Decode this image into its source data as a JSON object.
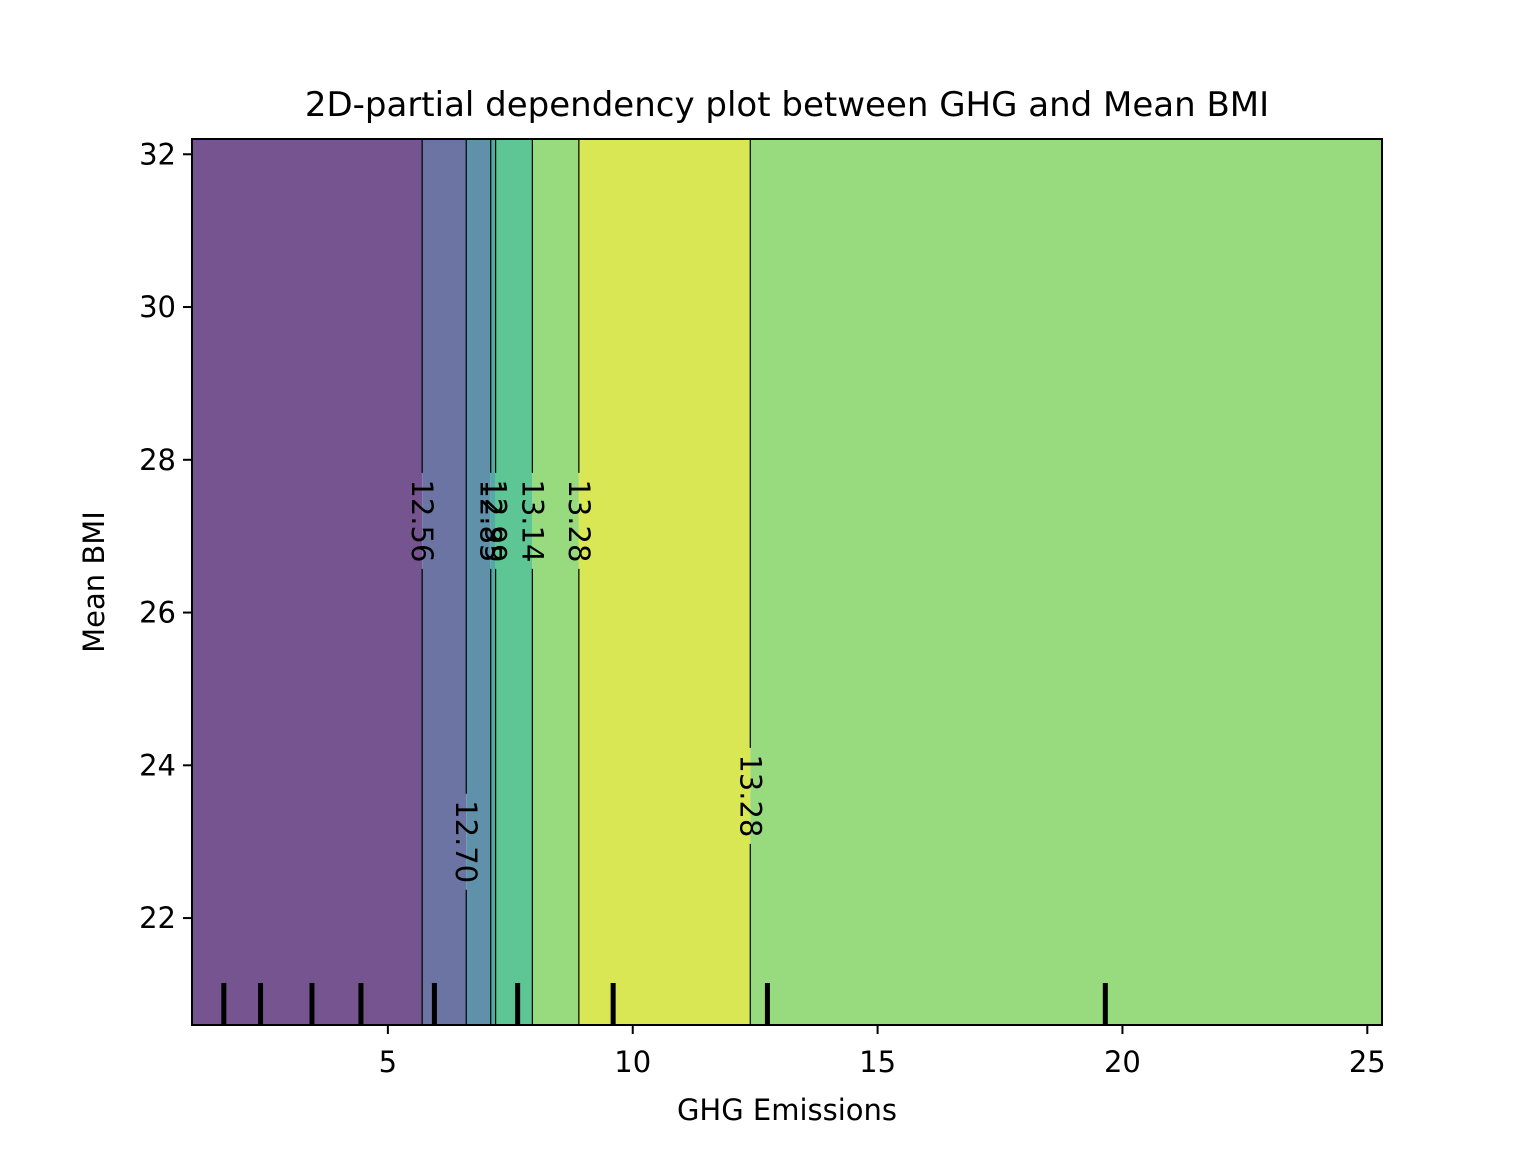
{
  "chart_data": {
    "type": "heatmap",
    "subtype": "filled-contour partial dependence",
    "title": "2D-partial dependency plot between GHG and Mean BMI",
    "xlabel": "GHG Emissions",
    "ylabel": "Mean BMI",
    "xlim": [
      1.0,
      25.3
    ],
    "ylim": [
      20.6,
      32.2
    ],
    "x_ticks": [
      5,
      10,
      15,
      20,
      25
    ],
    "y_ticks": [
      22,
      24,
      26,
      28,
      30,
      32
    ],
    "grid": false,
    "legend": "none",
    "bands": [
      {
        "x_start": 1.0,
        "x_end": 5.7,
        "color": "#765490",
        "level": "< 12.56"
      },
      {
        "x_start": 5.7,
        "x_end": 6.6,
        "color": "#6b74a2",
        "level": "12.56 – 12.70"
      },
      {
        "x_start": 6.6,
        "x_end": 7.1,
        "color": "#5f92aa",
        "level": "12.70 – 12.85"
      },
      {
        "x_start": 7.1,
        "x_end": 7.2,
        "color": "#52aba0",
        "level": "12.85 – 12.99"
      },
      {
        "x_start": 7.2,
        "x_end": 7.95,
        "color": "#5ec594",
        "level": "12.99 – 13.14"
      },
      {
        "x_start": 7.95,
        "x_end": 8.9,
        "color": "#98db7e",
        "level": "13.14 – 13.28"
      },
      {
        "x_start": 8.9,
        "x_end": 12.4,
        "color": "#dae754",
        "level": "> 13.28"
      },
      {
        "x_start": 12.4,
        "x_end": 25.3,
        "color": "#98db7e",
        "level": "13.14 – 13.28"
      }
    ],
    "contour_lines": [
      {
        "x": 5.7,
        "label": "12.56",
        "label_y": 27.2
      },
      {
        "x": 6.6,
        "label": "12.70",
        "label_y": 23.0
      },
      {
        "x": 7.1,
        "label": "12.85",
        "label_y": 27.2
      },
      {
        "x": 7.2,
        "label": "12.99",
        "label_y": 27.2
      },
      {
        "x": 7.95,
        "label": "13.14",
        "label_y": 27.2
      },
      {
        "x": 8.9,
        "label": "13.28",
        "label_y": 27.2
      },
      {
        "x": 12.4,
        "label": "13.28",
        "label_y": 23.6
      }
    ],
    "rug_deciles_x": [
      1.65,
      2.4,
      3.45,
      4.45,
      5.95,
      7.65,
      9.6,
      12.75,
      19.65
    ]
  }
}
